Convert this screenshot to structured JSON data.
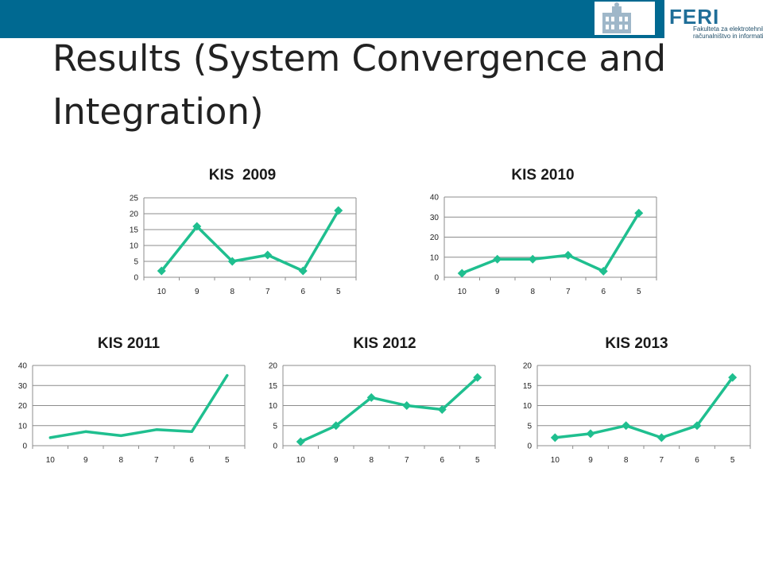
{
  "slide": {
    "title_lines": [
      "Results (System Convergence and",
      "Integration)"
    ],
    "logo": {
      "brand": "FERI",
      "subtitle_lines": [
        "Fakulteta za elektrotehniko,",
        "računalništvo in informatiko"
      ]
    },
    "colors": {
      "header_bar": "#006991",
      "series_line": "#1fbf8f",
      "grid": "#8c8c8c"
    },
    "icons": [
      "university-building-icon",
      "feri-logo-icon"
    ]
  },
  "chart_data": [
    {
      "type": "line",
      "title": "KIS  2009",
      "categories": [
        "10",
        "9",
        "8",
        "7",
        "6",
        "5"
      ],
      "series": [
        {
          "values": [
            2,
            16,
            5,
            7,
            2,
            21
          ],
          "markers": true
        }
      ],
      "ylim": [
        0,
        25
      ],
      "yticks": [
        0,
        5,
        10,
        15,
        20,
        25
      ],
      "xlabel": "",
      "ylabel": "",
      "grid": true,
      "legend": "none"
    },
    {
      "type": "line",
      "title": "KIS 2010",
      "categories": [
        "10",
        "9",
        "8",
        "7",
        "6",
        "5"
      ],
      "series": [
        {
          "values": [
            2,
            9,
            9,
            11,
            3,
            32
          ],
          "markers": true
        }
      ],
      "ylim": [
        0,
        40
      ],
      "yticks": [
        0,
        10,
        20,
        30,
        40
      ],
      "xlabel": "",
      "ylabel": "",
      "grid": true,
      "legend": "none"
    },
    {
      "type": "line",
      "title": "KIS 2011",
      "categories": [
        "10",
        "9",
        "8",
        "7",
        "6",
        "5"
      ],
      "series": [
        {
          "values": [
            4,
            7,
            5,
            8,
            7,
            35
          ],
          "markers": false
        }
      ],
      "ylim": [
        0,
        40
      ],
      "yticks": [
        0,
        10,
        20,
        30,
        40
      ],
      "xlabel": "",
      "ylabel": "",
      "grid": true,
      "legend": "none"
    },
    {
      "type": "line",
      "title": "KIS 2012",
      "categories": [
        "10",
        "9",
        "8",
        "7",
        "6",
        "5"
      ],
      "series": [
        {
          "values": [
            1,
            5,
            12,
            10,
            9,
            17
          ],
          "markers": true
        }
      ],
      "ylim": [
        0,
        20
      ],
      "yticks": [
        0,
        5,
        10,
        15,
        20
      ],
      "xlabel": "",
      "ylabel": "",
      "grid": true,
      "legend": "none"
    },
    {
      "type": "line",
      "title": "KIS 2013",
      "categories": [
        "10",
        "9",
        "8",
        "7",
        "6",
        "5"
      ],
      "series": [
        {
          "values": [
            2,
            3,
            5,
            2,
            5,
            17
          ],
          "markers": true
        }
      ],
      "ylim": [
        0,
        20
      ],
      "yticks": [
        0,
        5,
        10,
        15,
        20
      ],
      "xlabel": "",
      "ylabel": "",
      "grid": true,
      "legend": "none"
    }
  ]
}
